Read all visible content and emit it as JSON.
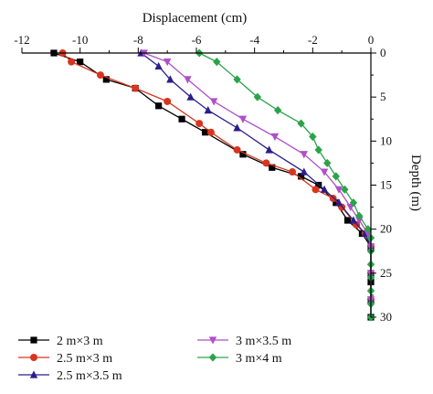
{
  "chart_data": {
    "type": "line",
    "title": "",
    "xlabel": "Displacement (cm)",
    "ylabel": "Depth (m)",
    "xlim": [
      -12,
      0
    ],
    "ylim": [
      0,
      30
    ],
    "x_ticks": [
      -12,
      -10,
      -8,
      -6,
      -4,
      -2,
      0
    ],
    "y_ticks": [
      0,
      5,
      10,
      15,
      20,
      25,
      30
    ],
    "x_axis_position": "top",
    "y_axis_position": "right",
    "y_inverted": true,
    "grid": false,
    "legend_position": "bottom",
    "series": [
      {
        "name": "2 m×3 m",
        "color": "#000000",
        "marker": "square",
        "points": [
          [
            -10.9,
            0
          ],
          [
            -10.0,
            1
          ],
          [
            -9.1,
            3
          ],
          [
            -8.1,
            4
          ],
          [
            -7.3,
            6
          ],
          [
            -6.5,
            7.5
          ],
          [
            -5.7,
            9
          ],
          [
            -4.4,
            11.5
          ],
          [
            -3.4,
            13
          ],
          [
            -2.4,
            14
          ],
          [
            -1.8,
            15
          ],
          [
            -1.2,
            17
          ],
          [
            -0.8,
            19
          ],
          [
            -0.3,
            20.5
          ],
          [
            0.0,
            22
          ],
          [
            0.0,
            26
          ],
          [
            0.0,
            30
          ]
        ]
      },
      {
        "name": "2.5 m×3 m",
        "color": "#d8351e",
        "marker": "circle",
        "points": [
          [
            -10.6,
            0
          ],
          [
            -10.3,
            1
          ],
          [
            -9.3,
            2.5
          ],
          [
            -8.1,
            4
          ],
          [
            -7.0,
            5.5
          ],
          [
            -5.9,
            8
          ],
          [
            -5.5,
            9
          ],
          [
            -4.6,
            11
          ],
          [
            -3.6,
            12.5
          ],
          [
            -2.7,
            13.5
          ],
          [
            -1.9,
            15.5
          ],
          [
            -1.3,
            16.5
          ],
          [
            -1.0,
            17.5
          ],
          [
            -0.5,
            19.5
          ],
          [
            -0.2,
            20.5
          ],
          [
            0.0,
            22
          ],
          [
            0.0,
            25
          ],
          [
            0.0,
            28
          ]
        ]
      },
      {
        "name": "2.5 m×3.5 m",
        "color": "#2a1e8a",
        "marker": "triangle",
        "points": [
          [
            -7.9,
            0
          ],
          [
            -7.3,
            1.5
          ],
          [
            -6.9,
            3
          ],
          [
            -6.2,
            5
          ],
          [
            -5.6,
            6.5
          ],
          [
            -4.6,
            8.5
          ],
          [
            -3.5,
            11
          ],
          [
            -2.3,
            13.5
          ],
          [
            -1.6,
            15.5
          ],
          [
            -1.1,
            17
          ],
          [
            -0.6,
            19
          ],
          [
            -0.2,
            20.5
          ],
          [
            0.0,
            22
          ],
          [
            0.0,
            25
          ],
          [
            0.0,
            28
          ]
        ]
      },
      {
        "name": "3 m×3.5 m",
        "color": "#b04fc8",
        "marker": "triangle-down",
        "points": [
          [
            -7.8,
            0
          ],
          [
            -7.0,
            1
          ],
          [
            -6.3,
            3
          ],
          [
            -5.4,
            5.5
          ],
          [
            -4.4,
            7.5
          ],
          [
            -3.3,
            9.5
          ],
          [
            -2.3,
            11.5
          ],
          [
            -1.6,
            13.5
          ],
          [
            -1.1,
            15.5
          ],
          [
            -0.7,
            17.5
          ],
          [
            -0.4,
            19
          ],
          [
            -0.1,
            20.5
          ],
          [
            0.0,
            22
          ],
          [
            0.0,
            25
          ],
          [
            0.0,
            28
          ]
        ]
      },
      {
        "name": "3 m×4 m",
        "color": "#2aa34a",
        "marker": "diamond",
        "points": [
          [
            -5.9,
            0
          ],
          [
            -5.3,
            1
          ],
          [
            -4.6,
            3
          ],
          [
            -3.9,
            5
          ],
          [
            -3.2,
            6.5
          ],
          [
            -2.4,
            8
          ],
          [
            -2.0,
            9.5
          ],
          [
            -1.8,
            11
          ],
          [
            -1.5,
            12.5
          ],
          [
            -1.2,
            14
          ],
          [
            -0.9,
            15.5
          ],
          [
            -0.6,
            17
          ],
          [
            -0.4,
            18.5
          ],
          [
            -0.1,
            20
          ],
          [
            0.0,
            21
          ],
          [
            0.0,
            22.5
          ],
          [
            0.0,
            24
          ],
          [
            0.0,
            25.5
          ],
          [
            0.0,
            27
          ],
          [
            0.0,
            28.5
          ],
          [
            0.0,
            30
          ]
        ]
      }
    ]
  }
}
